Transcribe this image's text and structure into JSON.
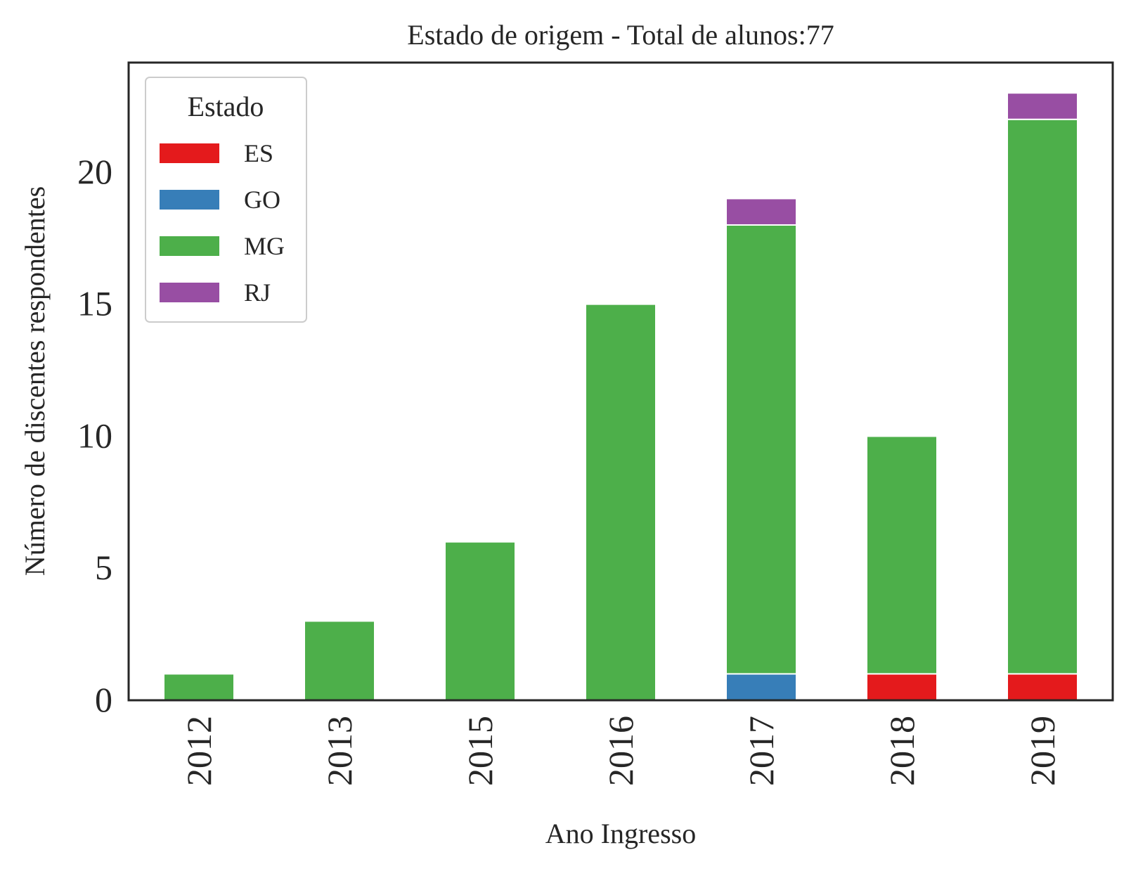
{
  "chart_data": {
    "type": "bar",
    "stacked": true,
    "title": "Estado de origem - Total de alunos:77",
    "xlabel": "Ano Ingresso",
    "ylabel": "Número de discentes respondentes",
    "categories": [
      "2012",
      "2013",
      "2015",
      "2016",
      "2017",
      "2018",
      "2019"
    ],
    "series": [
      {
        "name": "ES",
        "color": "#e41a1c",
        "values": [
          0,
          0,
          0,
          0,
          0,
          1,
          1
        ]
      },
      {
        "name": "GO",
        "color": "#377eb8",
        "values": [
          0,
          0,
          0,
          0,
          1,
          0,
          0
        ]
      },
      {
        "name": "MG",
        "color": "#4daf4a",
        "values": [
          1,
          3,
          6,
          15,
          17,
          9,
          21
        ]
      },
      {
        "name": "RJ",
        "color": "#984ea3",
        "values": [
          0,
          0,
          0,
          0,
          1,
          0,
          1
        ]
      }
    ],
    "ylim": [
      0,
      24.15
    ],
    "yticks": [
      "0",
      "5",
      "10",
      "15",
      "20"
    ],
    "grid": false,
    "legend": {
      "title": "Estado",
      "position": "upper-left"
    }
  }
}
